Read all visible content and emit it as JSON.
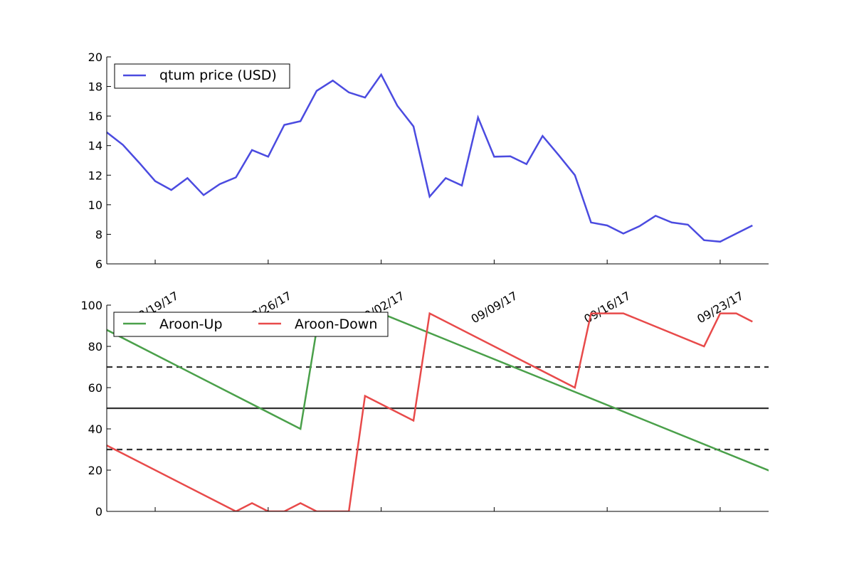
{
  "chart_data": [
    {
      "type": "line",
      "x_axis": {
        "type": "date",
        "start": "2017-08-14",
        "end": "2017-09-24",
        "tick_labels": [
          "08/19/17",
          "08/26/17",
          "09/02/17",
          "09/09/17",
          "09/16/17",
          "09/23/17"
        ],
        "tick_dates": [
          "2017-08-17",
          "2017-08-24",
          "2017-08-31",
          "2017-09-07",
          "2017-09-14",
          "2017-09-21"
        ]
      },
      "ylim": [
        6,
        20
      ],
      "yticks": [
        6,
        8,
        10,
        12,
        14,
        16,
        18,
        20
      ],
      "grid": false,
      "legend_position": "top-left",
      "series": [
        {
          "name": "qtum price (USD)",
          "color": "#4b4be0",
          "x": [
            "2017-08-14",
            "2017-08-15",
            "2017-08-16",
            "2017-08-17",
            "2017-08-18",
            "2017-08-19",
            "2017-08-20",
            "2017-08-21",
            "2017-08-22",
            "2017-08-23",
            "2017-08-24",
            "2017-08-25",
            "2017-08-26",
            "2017-08-27",
            "2017-08-28",
            "2017-08-29",
            "2017-08-30",
            "2017-08-31",
            "2017-09-01",
            "2017-09-02",
            "2017-09-03",
            "2017-09-04",
            "2017-09-05",
            "2017-09-06",
            "2017-09-07",
            "2017-09-08",
            "2017-09-09",
            "2017-09-10",
            "2017-09-11",
            "2017-09-12",
            "2017-09-13",
            "2017-09-14",
            "2017-09-15",
            "2017-09-16",
            "2017-09-17",
            "2017-09-18",
            "2017-09-19",
            "2017-09-20",
            "2017-09-21",
            "2017-09-22",
            "2017-09-23"
          ],
          "values": [
            14.9,
            14.05,
            12.85,
            11.6,
            11.0,
            11.8,
            10.65,
            11.4,
            11.85,
            13.7,
            13.25,
            15.4,
            15.65,
            17.7,
            18.4,
            17.6,
            17.25,
            18.8,
            16.7,
            15.3,
            10.55,
            11.8,
            11.3,
            15.9,
            13.25,
            13.28,
            12.75,
            14.65,
            13.35,
            12.0,
            8.8,
            8.6,
            8.05,
            8.55,
            9.25,
            8.8,
            8.65,
            7.6,
            7.5,
            8.05,
            8.6
          ]
        }
      ]
    },
    {
      "type": "line",
      "x_axis": {
        "type": "date",
        "start": "2017-08-14",
        "end": "2017-09-24"
      },
      "ylim": [
        0,
        100
      ],
      "yticks": [
        0,
        20,
        40,
        60,
        80,
        100
      ],
      "grid": false,
      "legend_position": "top-left",
      "legend_columns": 2,
      "reference_lines": [
        {
          "y": 70,
          "style": "dashed",
          "color": "#333333"
        },
        {
          "y": 50,
          "style": "solid",
          "color": "#333333"
        },
        {
          "y": 30,
          "style": "dashed",
          "color": "#333333"
        }
      ],
      "series": [
        {
          "name": "Aroon-Up",
          "color": "#4aa04a",
          "x": [
            "2017-08-14",
            "2017-08-26",
            "2017-08-27",
            "2017-08-31",
            "2017-09-29"
          ],
          "values": [
            88,
            40,
            88,
            96,
            4
          ]
        },
        {
          "name": "Aroon-Down",
          "color": "#e84a4a",
          "x": [
            "2017-08-14",
            "2017-08-22",
            "2017-08-23",
            "2017-08-24",
            "2017-08-25",
            "2017-08-26",
            "2017-08-27",
            "2017-08-28",
            "2017-08-29",
            "2017-08-30",
            "2017-09-02",
            "2017-09-03",
            "2017-09-12",
            "2017-09-13",
            "2017-09-15",
            "2017-09-20",
            "2017-09-21",
            "2017-09-22",
            "2017-09-23"
          ],
          "values": [
            32,
            0,
            4,
            0,
            0,
            4,
            0,
            0,
            0,
            56,
            44,
            96,
            60,
            96,
            96,
            80,
            96,
            96,
            92
          ]
        }
      ]
    }
  ]
}
